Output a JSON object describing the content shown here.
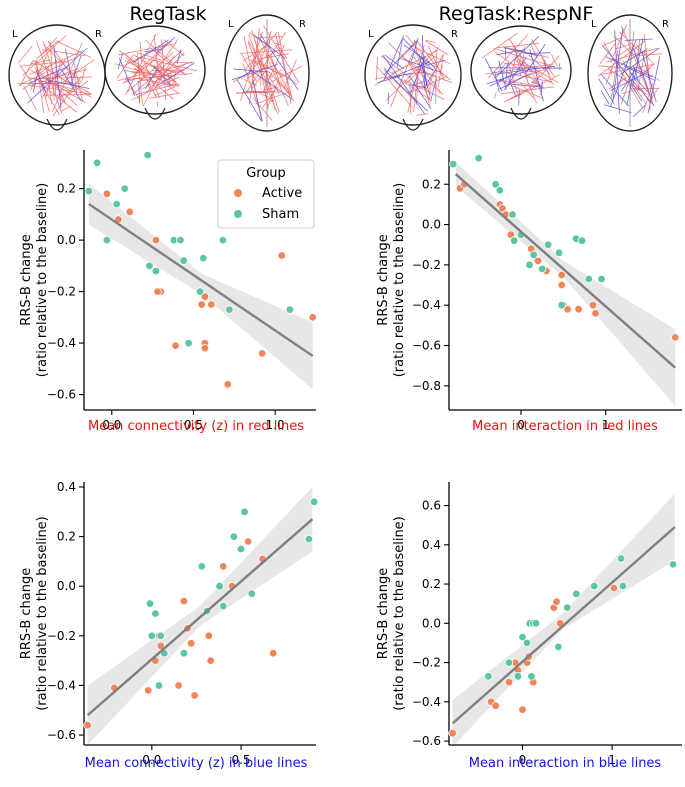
{
  "figure": {
    "column_titles": [
      "RegTask",
      "RegTask:RespNF"
    ],
    "brain_letters": {
      "left": "L",
      "right": "R"
    }
  },
  "colors": {
    "active": "#f0855a",
    "sham": "#5cc6a2",
    "fit_line": "#7f7f7f",
    "ci_band": "#e4e4e4",
    "red_label": "#e8140f",
    "blue_label": "#1414d8",
    "red_edges": "#f26666",
    "blue_edges": "#5050e0"
  },
  "legend": {
    "title": "Group",
    "entries": [
      {
        "label": "Active",
        "color_key": "active"
      },
      {
        "label": "Sham",
        "color_key": "sham"
      }
    ]
  },
  "chart_data": [
    {
      "type": "scatter",
      "id": "regtask-red",
      "title": "",
      "xlabel": "Mean connectivity (z) in red lines",
      "xlabel_color_key": "red_label",
      "ylabel": "RRS-B change\n(ratio relative to the baseline)",
      "xlim": [
        -0.17,
        1.25
      ],
      "ylim": [
        -0.66,
        0.35
      ],
      "xticks": [
        0.0,
        0.5,
        1.0
      ],
      "xtick_labels": [
        "0.0",
        "0.5",
        "1.0"
      ],
      "yticks": [
        0.2,
        0.0,
        -0.2,
        -0.4,
        -0.6
      ],
      "ytick_labels": [
        "0.2",
        "0.0",
        "−0.2",
        "−0.4",
        "−0.6"
      ],
      "fit_line": {
        "x": [
          -0.14,
          1.23
        ],
        "y": [
          0.14,
          -0.45
        ]
      },
      "ci_band": {
        "x": [
          -0.14,
          0.55,
          1.23
        ],
        "upper": [
          0.22,
          -0.13,
          -0.32
        ],
        "lower": [
          0.06,
          -0.21,
          -0.58
        ]
      },
      "series": [
        {
          "name": "Active",
          "x": [
            -0.03,
            0.04,
            0.11,
            0.27,
            0.3,
            0.28,
            0.39,
            0.55,
            0.57,
            0.57,
            0.57,
            0.61,
            0.71,
            0.92,
            1.04,
            1.23
          ],
          "y": [
            0.18,
            0.08,
            0.11,
            0.0,
            -0.2,
            -0.2,
            -0.41,
            -0.25,
            -0.22,
            -0.4,
            -0.42,
            -0.25,
            -0.56,
            -0.44,
            -0.06,
            -0.3
          ]
        },
        {
          "name": "Sham",
          "x": [
            -0.14,
            -0.09,
            -0.03,
            0.03,
            0.08,
            0.22,
            0.23,
            0.27,
            0.38,
            0.42,
            0.44,
            0.47,
            0.54,
            0.56,
            0.68,
            0.72,
            1.09
          ],
          "y": [
            0.19,
            0.3,
            0.0,
            0.14,
            0.2,
            0.33,
            -0.1,
            -0.12,
            0.0,
            0.0,
            -0.08,
            -0.4,
            -0.2,
            -0.07,
            0.0,
            -0.27,
            -0.27
          ]
        }
      ]
    },
    {
      "type": "scatter",
      "id": "respnf-red",
      "title": "",
      "xlabel": "Mean interaction in red lines",
      "xlabel_color_key": "red_label",
      "ylabel": "RRS-B change\n(ratio relative to the baseline)",
      "xlim": [
        -0.85,
        1.9
      ],
      "ylim": [
        -0.92,
        0.37
      ],
      "xticks": [
        0,
        1
      ],
      "xtick_labels": [
        "0",
        "1"
      ],
      "yticks": [
        0.2,
        0.0,
        -0.2,
        -0.4,
        -0.6,
        -0.8
      ],
      "ytick_labels": [
        "0.2",
        "0.0",
        "−0.2",
        "−0.4",
        "−0.6",
        "−0.8"
      ],
      "fit_line": {
        "x": [
          -0.77,
          1.82
        ],
        "y": [
          0.25,
          -0.71
        ]
      },
      "ci_band": {
        "x": [
          -0.77,
          0.5,
          1.82
        ],
        "upper": [
          0.31,
          -0.18,
          -0.52
        ],
        "lower": [
          0.19,
          -0.26,
          -0.9
        ]
      },
      "series": [
        {
          "name": "Active",
          "x": [
            -0.72,
            -0.67,
            -0.25,
            -0.22,
            -0.18,
            -0.12,
            0.12,
            0.2,
            0.24,
            0.3,
            0.48,
            0.48,
            0.5,
            0.55,
            0.68,
            0.85,
            0.88,
            1.82
          ],
          "y": [
            0.18,
            0.2,
            0.1,
            0.08,
            0.05,
            -0.05,
            -0.12,
            -0.18,
            -0.22,
            -0.23,
            -0.25,
            -0.3,
            -0.4,
            -0.42,
            -0.42,
            -0.4,
            -0.44,
            -0.56
          ]
        },
        {
          "name": "Sham",
          "x": [
            -0.8,
            -0.5,
            -0.3,
            -0.25,
            -0.1,
            -0.08,
            0.0,
            0.1,
            0.15,
            0.25,
            0.32,
            0.45,
            0.48,
            0.65,
            0.72,
            0.8,
            0.95
          ],
          "y": [
            0.3,
            0.33,
            0.2,
            0.17,
            0.05,
            -0.08,
            -0.05,
            -0.2,
            -0.15,
            -0.22,
            -0.1,
            -0.14,
            -0.4,
            -0.07,
            -0.08,
            -0.27,
            -0.27
          ]
        }
      ]
    },
    {
      "type": "scatter",
      "id": "regtask-blue",
      "title": "",
      "xlabel": "Mean connectivity (z) in blue lines",
      "xlabel_color_key": "blue_label",
      "ylabel": "RRS-B change\n(ratio relative to the baseline)",
      "xlim": [
        -0.38,
        0.92
      ],
      "ylim": [
        -0.64,
        0.42
      ],
      "xticks": [
        0.0,
        0.5
      ],
      "xtick_labels": [
        "0.0",
        "0.5"
      ],
      "yticks": [
        0.4,
        0.2,
        0.0,
        -0.2,
        -0.4,
        -0.6
      ],
      "ytick_labels": [
        "0.4",
        "0.2",
        "0.0",
        "−0.2",
        "−0.4",
        "−0.6"
      ],
      "fit_line": {
        "x": [
          -0.36,
          0.9
        ],
        "y": [
          -0.52,
          0.27
        ]
      },
      "ci_band": {
        "x": [
          -0.36,
          0.27,
          0.9
        ],
        "upper": [
          -0.4,
          -0.08,
          0.4
        ],
        "lower": [
          -0.64,
          -0.16,
          0.14
        ]
      },
      "series": [
        {
          "name": "Active",
          "x": [
            -0.36,
            -0.21,
            -0.02,
            0.02,
            0.04,
            0.05,
            0.15,
            0.18,
            0.2,
            0.22,
            0.24,
            0.32,
            0.33,
            0.4,
            0.45,
            0.54,
            0.62,
            0.68
          ],
          "y": [
            -0.56,
            -0.41,
            -0.42,
            -0.3,
            -0.2,
            -0.24,
            -0.4,
            -0.06,
            -0.17,
            -0.23,
            -0.44,
            -0.2,
            -0.3,
            0.08,
            0.0,
            0.18,
            0.11,
            -0.27
          ]
        },
        {
          "name": "Sham",
          "x": [
            -0.01,
            0.0,
            0.02,
            0.04,
            0.05,
            0.07,
            0.18,
            0.28,
            0.31,
            0.38,
            0.4,
            0.46,
            0.5,
            0.52,
            0.56,
            0.88,
            0.91
          ],
          "y": [
            -0.07,
            -0.2,
            -0.11,
            -0.4,
            -0.2,
            -0.27,
            -0.27,
            0.08,
            -0.1,
            0.0,
            -0.08,
            0.2,
            0.15,
            0.3,
            -0.03,
            0.19,
            0.34
          ]
        }
      ]
    },
    {
      "type": "scatter",
      "id": "respnf-blue",
      "title": "",
      "xlabel": "Mean interaction in blue lines",
      "xlabel_color_key": "blue_label",
      "ylabel": "RRS-B change\n(ratio relative to the baseline)",
      "xlim": [
        -0.82,
        1.78
      ],
      "ylim": [
        -0.62,
        0.72
      ],
      "xticks": [
        0,
        1
      ],
      "xtick_labels": [
        "0",
        "1"
      ],
      "yticks": [
        0.6,
        0.4,
        0.2,
        0.0,
        -0.2,
        -0.4,
        -0.6
      ],
      "ytick_labels": [
        "0.6",
        "0.4",
        "0.2",
        "0.0",
        "−0.2",
        "−0.4",
        "−0.6"
      ],
      "fit_line": {
        "x": [
          -0.78,
          1.7
        ],
        "y": [
          -0.51,
          0.49
        ]
      },
      "ci_band": {
        "x": [
          -0.78,
          0.45,
          1.7
        ],
        "upper": [
          -0.39,
          0.05,
          0.66
        ],
        "lower": [
          -0.63,
          -0.03,
          0.32
        ]
      },
      "series": [
        {
          "name": "Active",
          "x": [
            -0.78,
            -0.35,
            -0.3,
            -0.15,
            -0.08,
            -0.05,
            0.0,
            0.05,
            0.07,
            0.1,
            0.12,
            0.35,
            0.38,
            0.42,
            1.02
          ],
          "y": [
            -0.56,
            -0.4,
            -0.42,
            -0.3,
            -0.2,
            -0.24,
            -0.44,
            -0.2,
            -0.17,
            -0.27,
            -0.3,
            0.08,
            0.11,
            0.0,
            0.18
          ]
        },
        {
          "name": "Sham",
          "x": [
            -0.38,
            -0.15,
            -0.05,
            0.0,
            0.05,
            0.08,
            0.1,
            0.12,
            0.15,
            0.4,
            0.5,
            0.6,
            0.8,
            1.1,
            1.12,
            1.68
          ],
          "y": [
            -0.27,
            -0.2,
            -0.27,
            -0.07,
            -0.1,
            0.0,
            -0.27,
            0.0,
            0.0,
            -0.12,
            0.08,
            0.15,
            0.19,
            0.33,
            0.19,
            0.3
          ]
        }
      ]
    }
  ]
}
